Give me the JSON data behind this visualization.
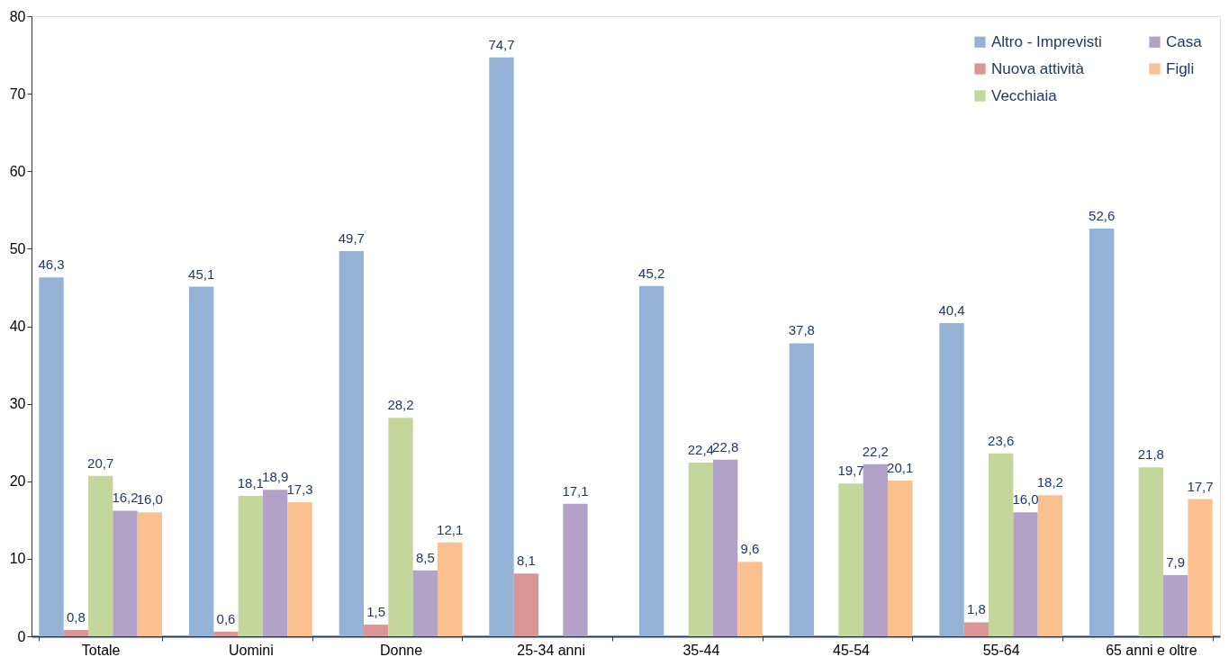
{
  "chart_data": {
    "type": "bar",
    "categories": [
      "Totale",
      "Uomini",
      "Donne",
      "25-34 anni",
      "35-44",
      "45-54",
      "55-64",
      "65 anni e oltre"
    ],
    "series": [
      {
        "name": "Altro - Imprevisti",
        "color": "#95b3d7",
        "values": [
          46.3,
          45.1,
          49.7,
          74.7,
          45.2,
          37.8,
          40.4,
          52.6
        ],
        "value_labels": [
          "46,3",
          "45,1",
          "49,7",
          "74,7",
          "45,2",
          "37,8",
          "40,4",
          "52,6"
        ]
      },
      {
        "name": "Nuova attività",
        "color": "#d99694",
        "values": [
          0.8,
          0.6,
          1.5,
          8.1,
          null,
          null,
          1.8,
          null
        ],
        "value_labels": [
          "0,8",
          "0,6",
          "1,5",
          "8,1",
          null,
          null,
          "1,8",
          null
        ]
      },
      {
        "name": "Vecchiaia",
        "color": "#c3d69b",
        "values": [
          20.7,
          18.1,
          28.2,
          null,
          22.4,
          19.7,
          23.6,
          21.8
        ],
        "value_labels": [
          "20,7",
          "18,1",
          "28,2",
          null,
          "22,4",
          "19,7",
          "23,6",
          "21,8"
        ]
      },
      {
        "name": "Casa",
        "color": "#b3a2c7",
        "values": [
          16.2,
          18.9,
          8.5,
          17.1,
          22.8,
          22.2,
          16.0,
          7.9
        ],
        "value_labels": [
          "16,2",
          "18,9",
          "8,5",
          "17,1",
          "22,8",
          "22,2",
          "16,0",
          "7,9"
        ]
      },
      {
        "name": "Figli",
        "color": "#fac090",
        "values": [
          16.0,
          17.3,
          12.1,
          null,
          9.6,
          20.1,
          18.2,
          17.7
        ],
        "value_labels": [
          "16,0",
          "17,3",
          "12,1",
          null,
          "9,6",
          "20,1",
          "18,2",
          "17,7"
        ]
      }
    ],
    "ylim": [
      0,
      80
    ],
    "yticks": [
      0,
      10,
      20,
      30,
      40,
      50,
      60,
      70,
      80
    ],
    "grid": false,
    "legend": "top right"
  }
}
